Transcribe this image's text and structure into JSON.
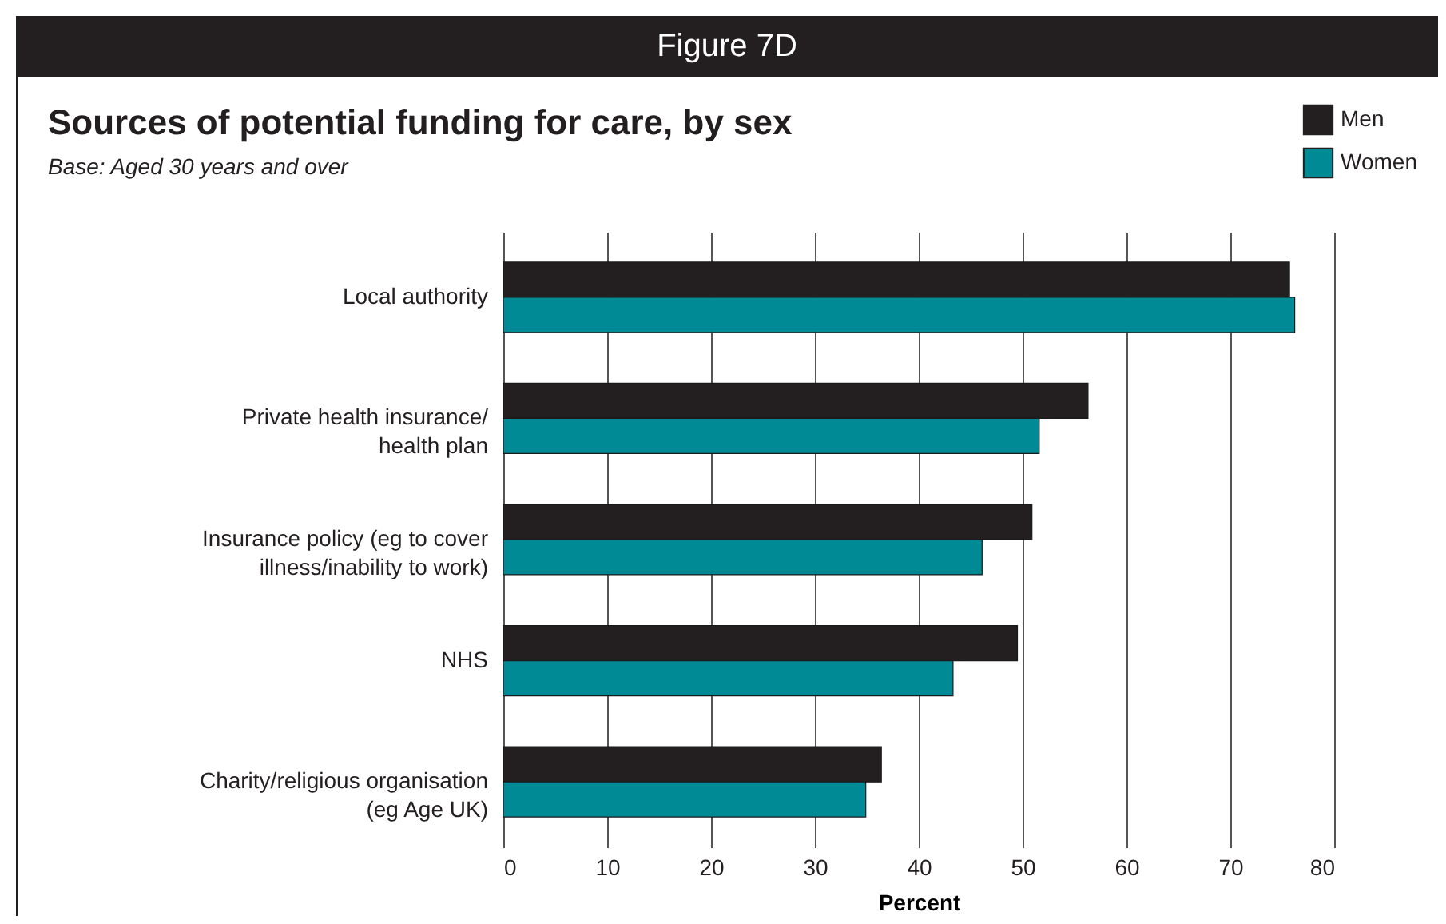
{
  "chart_data": {
    "type": "bar",
    "orientation": "horizontal",
    "title": "Sources of potential funding for care, by sex",
    "subtitle": "Base: Aged 30 years and over",
    "annotations": [
      "Figure 7D"
    ],
    "xlabel": "Percent",
    "categories": [
      "Local authority",
      "Private health insurance/\nhealth plan",
      "Insurance policy (eg to cover\nillness/inability to work)",
      "NHS",
      "Charity/religious organisation\n(eg Age UK)"
    ],
    "series": [
      {
        "name": "Men",
        "color": "#231f20",
        "values": [
          75.7,
          56.3,
          50.9,
          49.5,
          36.4
        ]
      },
      {
        "name": "Women",
        "color": "#008a96",
        "values": [
          76.2,
          51.6,
          46.1,
          43.3,
          34.9
        ]
      }
    ],
    "xlim": [
      0,
      80
    ],
    "xticks": [
      0,
      10,
      20,
      30,
      40,
      50,
      60,
      70,
      80
    ],
    "grid": "x",
    "legend": "top right"
  }
}
